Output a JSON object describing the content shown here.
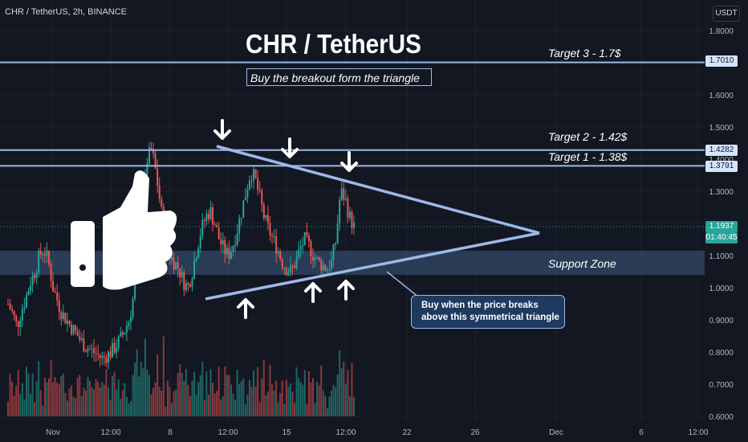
{
  "header": {
    "symbol_line": "CHR / TetherUS, 2h, BINANCE",
    "currency": "USDT"
  },
  "annotations": {
    "title": "CHR / TetherUS",
    "subtitle": "Buy the breakout form the triangle",
    "note_line1": "Buy when the price breaks",
    "note_line2": "above this symmetrical triangle",
    "support_zone": "Support Zone",
    "targets": [
      {
        "label": "Target 3 - 1.7$",
        "price": 1.701,
        "tag": "1.7010"
      },
      {
        "label": "Target 2 - 1.42$",
        "price": 1.4282,
        "tag": "1.4282"
      },
      {
        "label": "Target 1 - 1.38$",
        "price": 1.3791,
        "tag": "1.3791"
      }
    ]
  },
  "current_price": {
    "value": "1.1937",
    "countdown": "01:40:45"
  },
  "colors": {
    "up": "#26a69a",
    "down": "#ef5350",
    "line": "#9db8e8",
    "background": "#131722",
    "zone": "#3d5a80"
  },
  "icons": [
    "thumbs-up-icon",
    "down-arrow-icon",
    "up-arrow-icon"
  ],
  "chart_data": {
    "type": "candlestick",
    "title": "CHR / TetherUS",
    "ylim": [
      0.6,
      1.85
    ],
    "y_ticks": [
      "1.8000",
      "1.7000",
      "1.6000",
      "1.5000",
      "1.4000",
      "1.3000",
      "1.2000",
      "1.1000",
      "1.0000",
      "0.9000",
      "0.8000",
      "0.7000",
      "0.6000"
    ],
    "x_ticks": [
      "Nov",
      "12:00",
      "8",
      "12:00",
      "15",
      "12:00",
      "22",
      "26",
      "Dec",
      "6",
      "12:00"
    ],
    "support_zone": [
      1.04,
      1.115
    ],
    "triangle": {
      "upper_start": 1.44,
      "upper_end": 1.295,
      "lower_start": 0.97,
      "lower_end": 1.085,
      "apex": 1.17
    },
    "close_series": [
      0.95,
      0.92,
      0.88,
      0.93,
      0.97,
      1.02,
      1.05,
      1.1,
      1.12,
      1.08,
      1.0,
      0.96,
      0.92,
      0.9,
      0.88,
      0.86,
      0.84,
      0.82,
      0.81,
      0.8,
      0.79,
      0.78,
      0.79,
      0.8,
      0.82,
      0.84,
      0.87,
      0.9,
      0.98,
      1.1,
      1.25,
      1.4,
      1.43,
      1.35,
      1.25,
      1.15,
      1.1,
      1.08,
      1.06,
      1.02,
      1.0,
      1.05,
      1.12,
      1.18,
      1.22,
      1.24,
      1.2,
      1.15,
      1.12,
      1.1,
      1.13,
      1.18,
      1.24,
      1.3,
      1.36,
      1.34,
      1.28,
      1.22,
      1.18,
      1.15,
      1.12,
      1.08,
      1.06,
      1.05,
      1.08,
      1.12,
      1.15,
      1.13,
      1.1,
      1.08,
      1.07,
      1.06,
      1.08,
      1.15,
      1.3,
      1.28,
      1.22,
      1.19
    ]
  }
}
